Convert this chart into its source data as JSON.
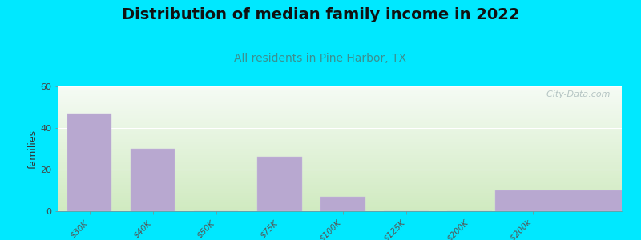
{
  "title": "Distribution of median family income in 2022",
  "subtitle": "All residents in Pine Harbor, TX",
  "categories": [
    "$30K",
    "$40K",
    "$50K",
    "$75K",
    "$100K",
    "$125K",
    "$200K",
    "> $200k"
  ],
  "values": [
    47,
    30,
    0,
    26,
    7,
    0,
    0,
    10
  ],
  "bar_color": "#b8a8d0",
  "bar_edge_color": "#c8b8e0",
  "ylabel": "families",
  "ylim": [
    0,
    60
  ],
  "yticks": [
    0,
    20,
    40,
    60
  ],
  "background_outer": "#00e8ff",
  "background_inner_top": "#f5faf5",
  "background_inner_bottom": "#d0eac0",
  "title_fontsize": 14,
  "subtitle_fontsize": 10,
  "subtitle_color": "#3a9090",
  "watermark": "  City-Data.com",
  "watermark_color": "#aabbbb"
}
